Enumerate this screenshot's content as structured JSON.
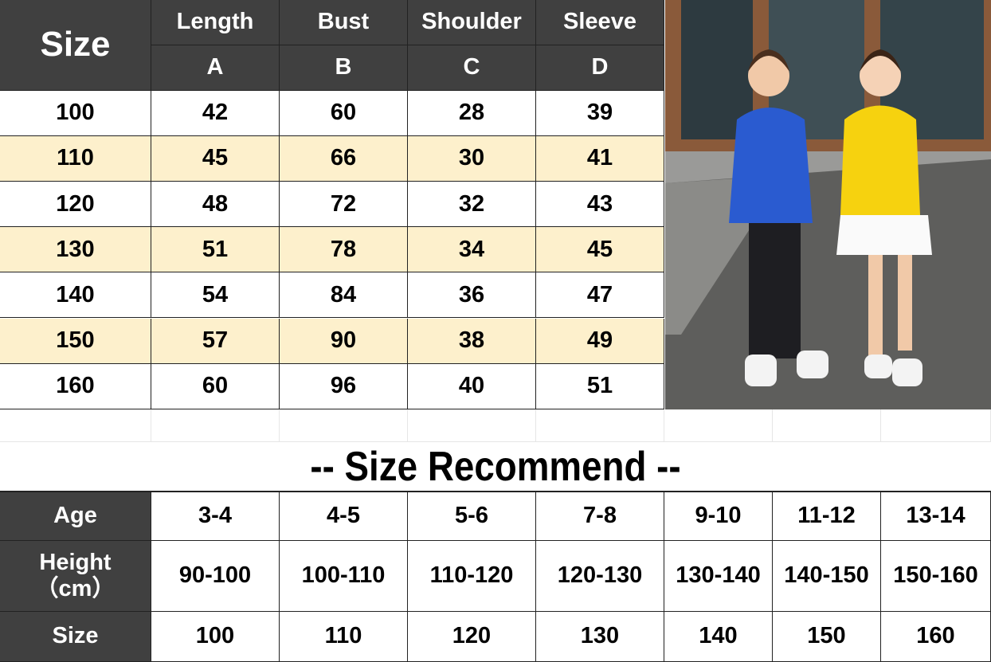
{
  "size_chart": {
    "size_header": "Size",
    "columns": [
      {
        "name": "Length",
        "code": "A"
      },
      {
        "name": "Bust",
        "code": "B"
      },
      {
        "name": "Shoulder",
        "code": "C"
      },
      {
        "name": "Sleeve",
        "code": "D"
      }
    ],
    "rows": [
      [
        "100",
        "42",
        "60",
        "28",
        "39"
      ],
      [
        "110",
        "45",
        "66",
        "30",
        "41"
      ],
      [
        "120",
        "48",
        "72",
        "32",
        "43"
      ],
      [
        "130",
        "51",
        "78",
        "34",
        "45"
      ],
      [
        "140",
        "54",
        "84",
        "36",
        "47"
      ],
      [
        "150",
        "57",
        "90",
        "38",
        "49"
      ],
      [
        "160",
        "60",
        "96",
        "40",
        "51"
      ]
    ],
    "stripe_color": "#fdf0cc",
    "header_color": "#404040"
  },
  "photo": {
    "subject": "boy-blue-hoodie-girl-yellow-hoodie"
  },
  "recommend": {
    "title": "-- Size Recommend --",
    "labels": {
      "age": "Age",
      "height": "Height\n（cm）",
      "size": "Size"
    },
    "age": [
      "3-4",
      "4-5",
      "5-6",
      "7-8",
      "9-10",
      "11-12",
      "13-14"
    ],
    "height": [
      "90-100",
      "100-110",
      "110-120",
      "120-130",
      "130-140",
      "140-150",
      "150-160"
    ],
    "size": [
      "100",
      "110",
      "120",
      "130",
      "140",
      "150",
      "160"
    ]
  }
}
